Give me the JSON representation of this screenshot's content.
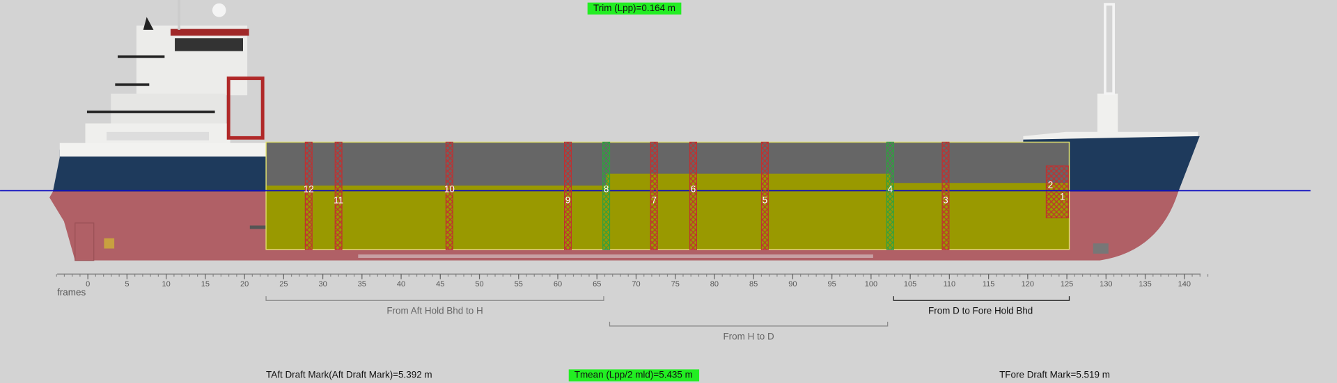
{
  "header": {
    "trim": "Trim (Lpp)=0.164 m"
  },
  "frame_scale": {
    "label": "frames",
    "ticks": [
      0,
      5,
      10,
      15,
      20,
      25,
      30,
      35,
      40,
      45,
      50,
      55,
      60,
      65,
      70,
      75,
      80,
      85,
      90,
      95,
      100,
      105,
      110,
      115,
      120,
      125,
      130,
      135,
      140
    ]
  },
  "tank_labels": [
    "12",
    "11",
    "10",
    "9",
    "8",
    "7",
    "6",
    "5",
    "4",
    "3",
    "2",
    "1"
  ],
  "sections": [
    "From Aft Hold Bhd to H",
    "From H to D",
    "From D to Fore Hold Bhd"
  ],
  "footer": {
    "aft_draft": "TAft Draft Mark(Aft Draft Mark)=5.392 m",
    "mean_draft": "Tmean (Lpp/2 mld)=5.435 m",
    "fore_draft": "TFore Draft Mark=5.519 m"
  }
}
